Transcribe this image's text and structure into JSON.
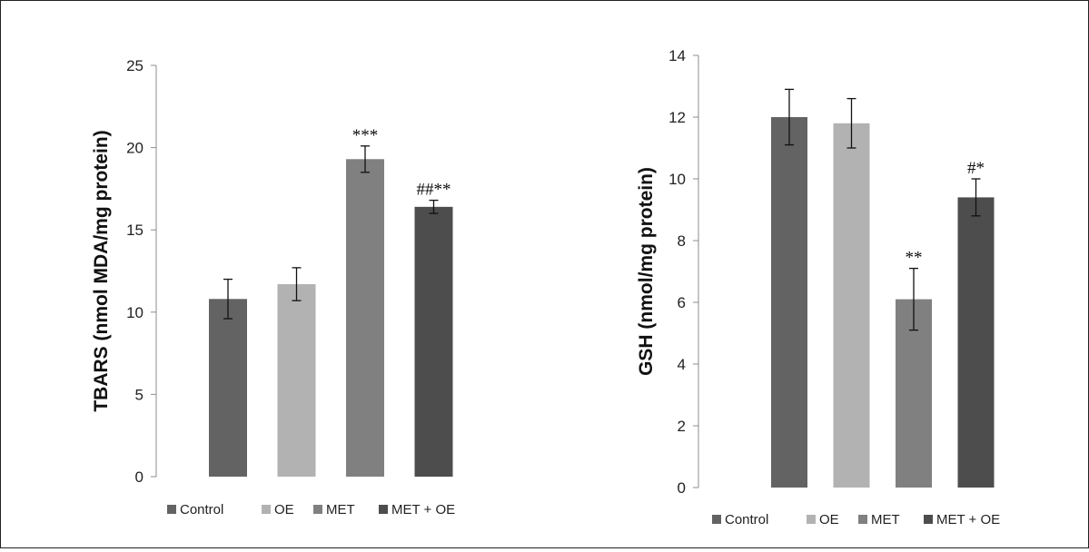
{
  "colors": {
    "Control": "#636363",
    "OE": "#b2b2b2",
    "MET": "#808080",
    "MET + OE": "#4d4d4d",
    "axis": "#8c8c8c",
    "error_bar": "#111111"
  },
  "chart_data": [
    {
      "type": "bar",
      "categories": [
        "Control",
        "OE",
        "MET",
        "MET + OE"
      ],
      "values": [
        10.8,
        11.7,
        19.3,
        16.4
      ],
      "error": [
        1.2,
        1.0,
        0.8,
        0.4
      ],
      "annotations": [
        "",
        "",
        "***",
        "##**"
      ],
      "ylabel": "TBARS (nmol MDA/mg protein)",
      "ylim": [
        0,
        25
      ],
      "yticks": [
        0,
        5,
        10,
        15,
        20,
        25
      ],
      "grid": false,
      "legend": {
        "position": "bottom",
        "entries": [
          "Control",
          "OE",
          "MET",
          "MET + OE"
        ]
      }
    },
    {
      "type": "bar",
      "categories": [
        "Control",
        "OE",
        "MET",
        "MET + OE"
      ],
      "values": [
        12.0,
        11.8,
        6.1,
        9.4
      ],
      "error": [
        0.9,
        0.8,
        1.0,
        0.6
      ],
      "annotations": [
        "",
        "",
        "**",
        "#*"
      ],
      "ylabel": "GSH (nmol/mg protein)",
      "ylim": [
        0,
        14
      ],
      "yticks": [
        0,
        2,
        4,
        6,
        8,
        10,
        12,
        14
      ],
      "grid": false,
      "legend": {
        "position": "bottom",
        "entries": [
          "Control",
          "OE",
          "MET",
          "MET + OE"
        ]
      }
    }
  ]
}
